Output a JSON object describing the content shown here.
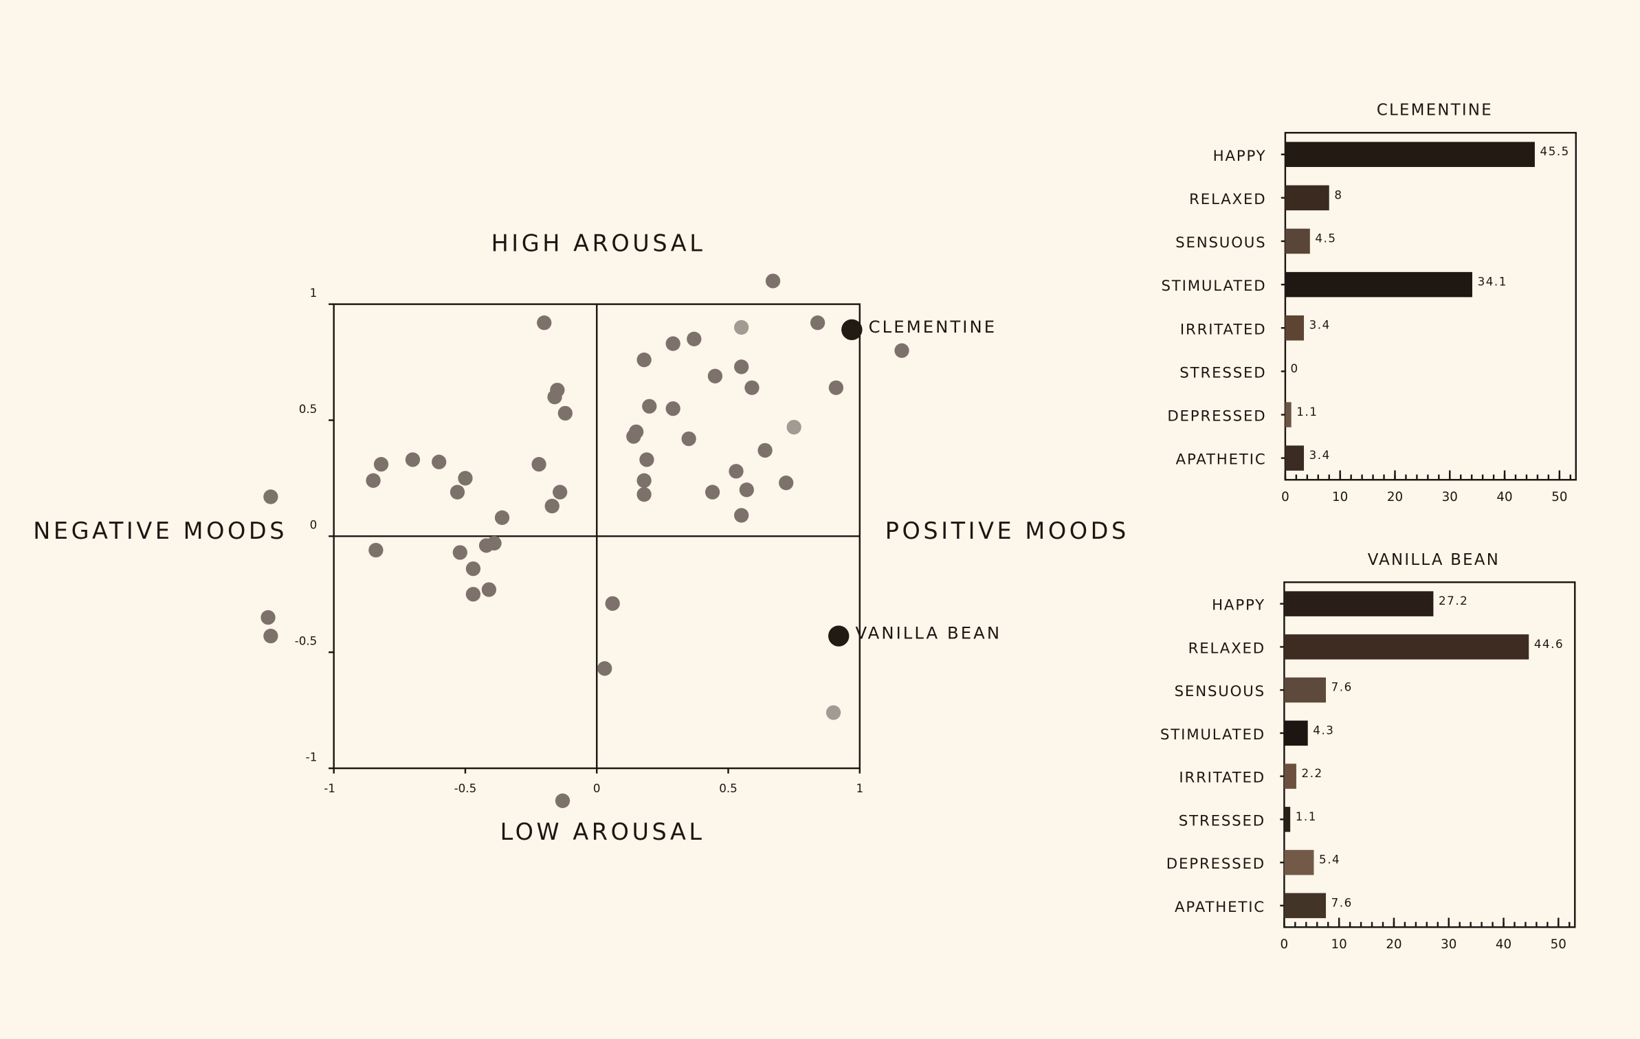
{
  "chart_data": [
    {
      "type": "scatter",
      "top_label": "HIGH AROUSAL",
      "bottom_label": "LOW AROUSAL",
      "left_label": "NEGATIVE MOODS",
      "right_label": "POSITIVE MOODS",
      "xlim": [
        -1,
        1
      ],
      "ylim": [
        -1,
        1
      ],
      "xticks": [
        -1,
        -0.5,
        0,
        0.5,
        1
      ],
      "yticks": [
        -1,
        -0.5,
        0,
        0.5,
        1
      ],
      "x": [
        0.67,
        0.55,
        0.84,
        1.16,
        0.29,
        0.37,
        0.18,
        0.55,
        0.45,
        0.59,
        0.91,
        0.2,
        0.29,
        0.15,
        0.14,
        0.35,
        0.75,
        0.64,
        0.19,
        0.53,
        0.72,
        0.18,
        0.57,
        0.44,
        0.18,
        0.55,
        -0.2,
        -0.15,
        -0.16,
        -0.12,
        -0.22,
        -0.14,
        -0.17,
        -0.36,
        -0.82,
        -0.7,
        -0.6,
        -0.85,
        -0.5,
        -0.53,
        -1.24,
        -0.84,
        -0.52,
        -0.39,
        -0.42,
        -0.47,
        -0.41,
        -0.47,
        -1.25,
        -1.24,
        0.06,
        0.03,
        0.9,
        -0.13
      ],
      "y": [
        1.1,
        0.9,
        0.92,
        0.8,
        0.83,
        0.85,
        0.76,
        0.73,
        0.69,
        0.64,
        0.64,
        0.56,
        0.55,
        0.45,
        0.43,
        0.42,
        0.47,
        0.37,
        0.33,
        0.28,
        0.23,
        0.24,
        0.2,
        0.19,
        0.18,
        0.09,
        0.92,
        0.63,
        0.6,
        0.53,
        0.31,
        0.19,
        0.13,
        0.08,
        0.31,
        0.33,
        0.32,
        0.24,
        0.25,
        0.19,
        0.17,
        -0.06,
        -0.07,
        -0.03,
        -0.04,
        -0.14,
        -0.23,
        -0.25,
        -0.35,
        -0.43,
        -0.29,
        -0.57,
        -0.76,
        -1.14
      ],
      "color": "#7d726b",
      "light_color": "#a29a93",
      "light_points": [
        1,
        16,
        52
      ],
      "highlights": [
        {
          "label": "CLEMENTINE",
          "x": 0.97,
          "y": 0.89,
          "color": "#231a14"
        },
        {
          "label": "VANILLA BEAN",
          "x": 0.92,
          "y": -0.43,
          "color": "#231a14"
        }
      ]
    },
    {
      "type": "bar",
      "orientation": "horizontal",
      "title": "CLEMENTINE",
      "categories": [
        "HAPPY",
        "RELAXED",
        "SENSUOUS",
        "STIMULATED",
        "IRRITATED",
        "STRESSED",
        "DEPRESSED",
        "APATHETIC"
      ],
      "values": [
        45.5,
        8,
        4.5,
        34.1,
        3.4,
        0,
        1.1,
        3.4
      ],
      "colors": [
        "#241a14",
        "#3b2a1f",
        "#5a4638",
        "#1e1712",
        "#5e4533",
        "#3a2c22",
        "#6b5645",
        "#3a2c22"
      ],
      "xlim": [
        0,
        53
      ],
      "xticks": [
        0,
        10,
        20,
        30,
        40,
        50
      ],
      "minor_step": 2
    },
    {
      "type": "bar",
      "orientation": "horizontal",
      "title": "VANILLA BEAN",
      "categories": [
        "HAPPY",
        "RELAXED",
        "SENSUOUS",
        "STIMULATED",
        "IRRITATED",
        "STRESSED",
        "DEPRESSED",
        "APATHETIC"
      ],
      "values": [
        27.2,
        44.6,
        7.6,
        4.3,
        2.2,
        1.1,
        5.4,
        7.6
      ],
      "colors": [
        "#2a1f18",
        "#3e2c22",
        "#5d4a3c",
        "#1c1512",
        "#6b5040",
        "#2a201a",
        "#735a48",
        "#433428"
      ],
      "xlim": [
        0,
        53
      ],
      "xticks": [
        0,
        10,
        20,
        30,
        40,
        50
      ],
      "minor_step": 2
    }
  ]
}
